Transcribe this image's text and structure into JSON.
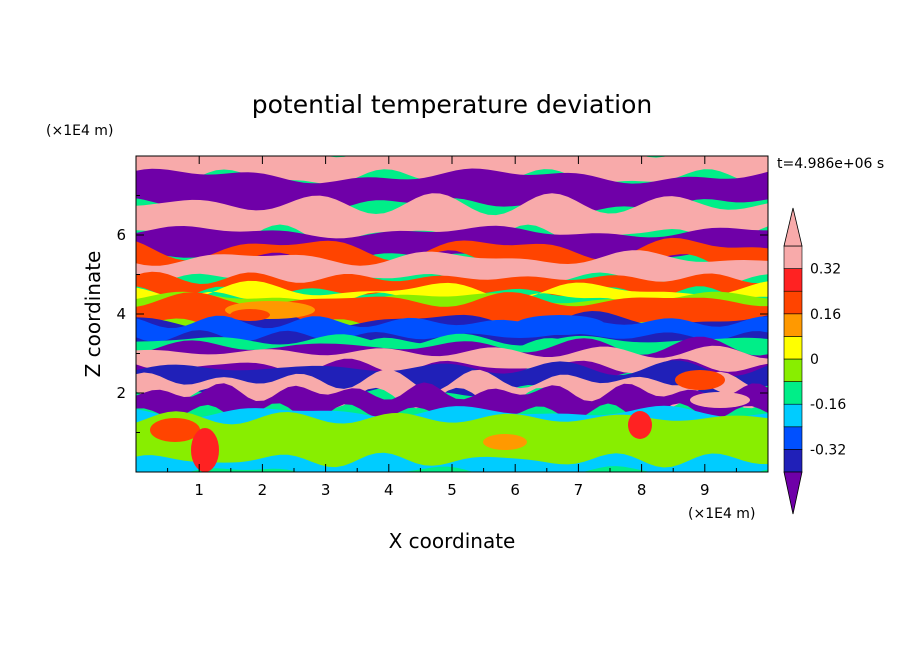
{
  "chart_data": {
    "type": "heatmap",
    "title": "potential temperature deviation",
    "time_label": "t=4.986e+06 s",
    "xlabel": "X coordinate",
    "ylabel": "Z coordinate",
    "x_unit": "(×1E4 m)",
    "y_unit": "(×1E4 m)",
    "xlim": [
      0,
      10
    ],
    "ylim": [
      0,
      8
    ],
    "x_ticks": [
      "1",
      "2",
      "3",
      "4",
      "5",
      "6",
      "7",
      "8",
      "9"
    ],
    "y_ticks": [
      "2",
      "4",
      "6"
    ],
    "colorbar": {
      "levels": [
        -0.4,
        -0.32,
        -0.24,
        -0.16,
        -0.08,
        0,
        0.08,
        0.16,
        0.24,
        0.32,
        0.4
      ],
      "colors": [
        "#6f00a8",
        "#2020b8",
        "#0050ff",
        "#00ccff",
        "#00ee88",
        "#88ee00",
        "#ffff00",
        "#ff9900",
        "#ff4400",
        "#ff2222",
        "#f8aaaa"
      ],
      "labels": [
        "0.32",
        "0.16",
        "0",
        "-0.16",
        "-0.32"
      ],
      "label_values": [
        0.32,
        0.16,
        0,
        -0.16,
        -0.32
      ]
    }
  }
}
